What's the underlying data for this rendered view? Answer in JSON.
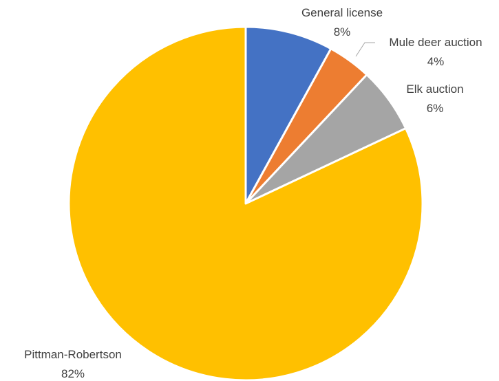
{
  "chart_data": {
    "type": "pie",
    "title": "",
    "start_angle_deg": 0,
    "direction": "clockwise",
    "slices": [
      {
        "name": "General license",
        "value": 8,
        "label": "8%",
        "color": "#4472C4"
      },
      {
        "name": "Mule deer auction",
        "value": 4,
        "label": "4%",
        "color": "#ED7D31"
      },
      {
        "name": "Elk auction",
        "value": 6,
        "label": "6%",
        "color": "#A5A5A5"
      },
      {
        "name": "Pittman-Robertson",
        "value": 82,
        "label": "82%",
        "color": "#FFC000"
      }
    ],
    "legend": "none",
    "data_labels": "outside"
  }
}
